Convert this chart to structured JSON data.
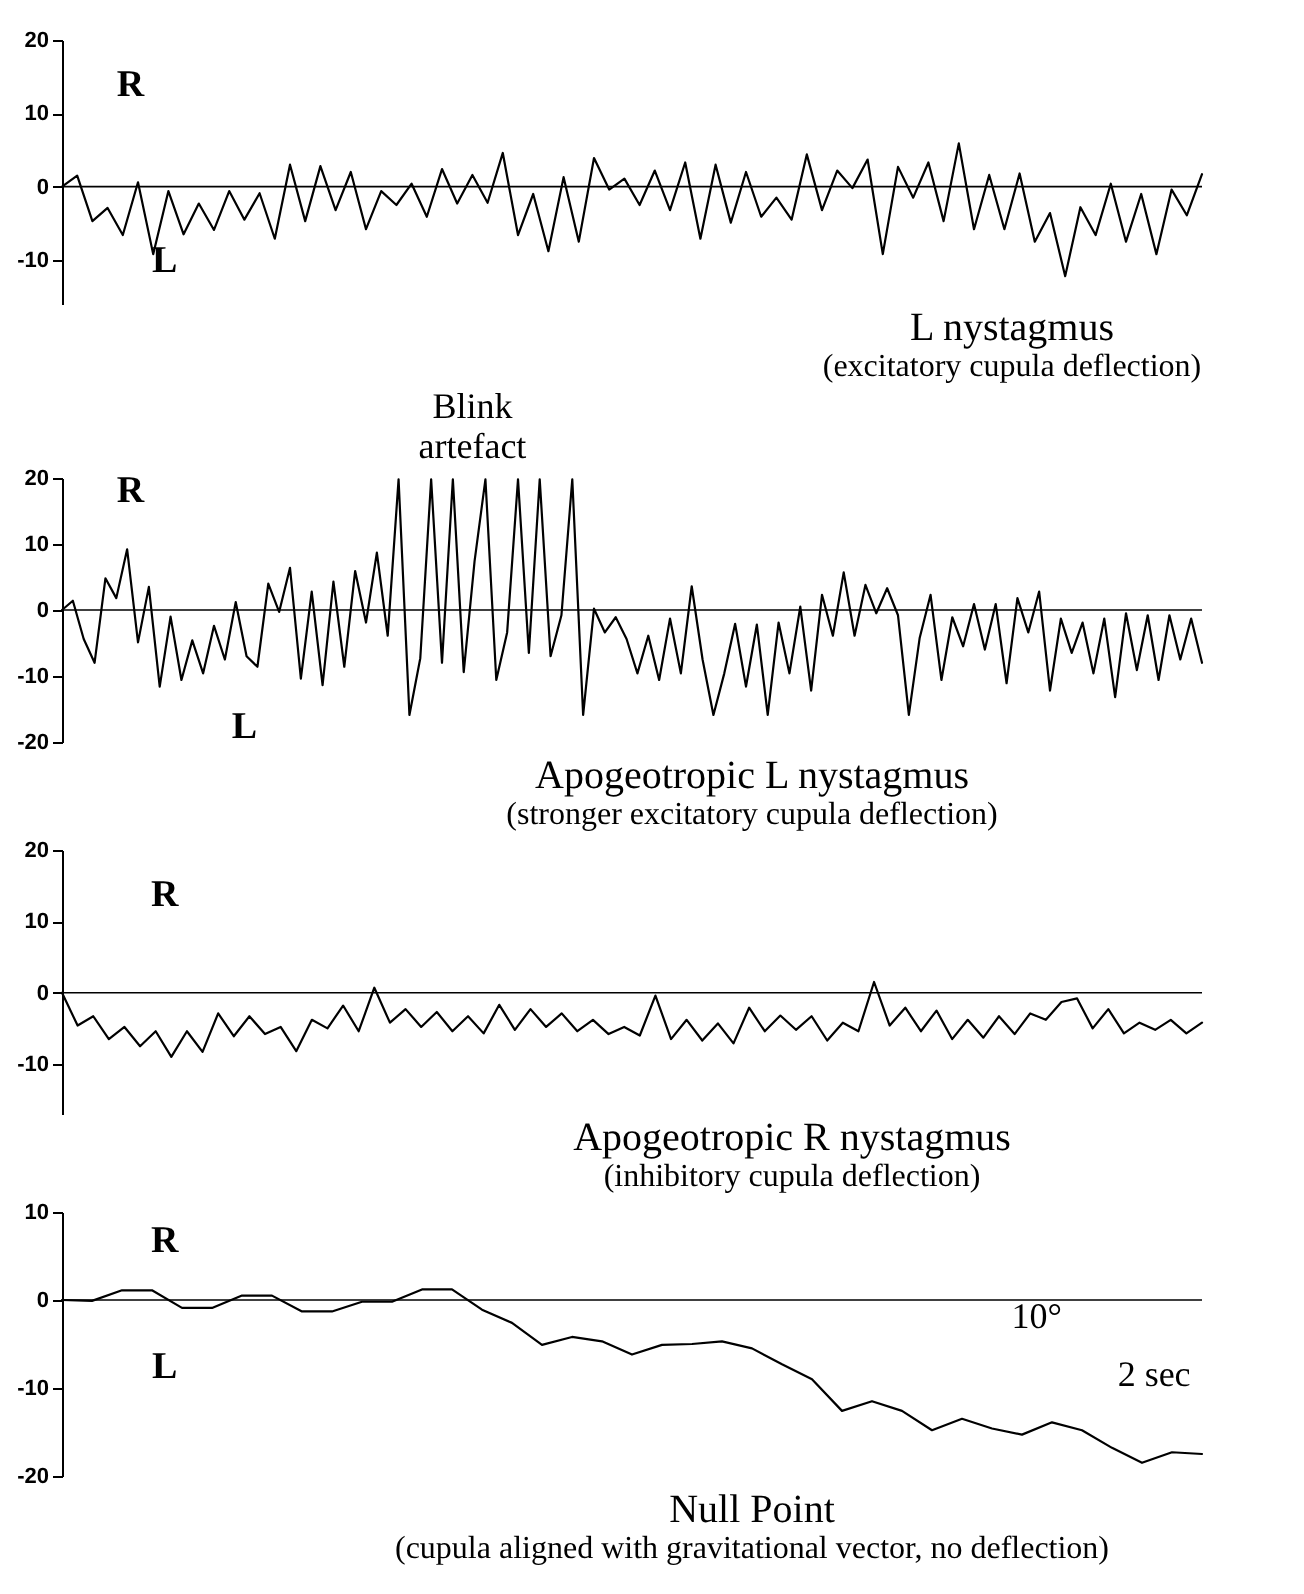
{
  "chart_data": [
    {
      "type": "line",
      "title": "L nystagmus",
      "subtitle": "(excitatory cupula deflection)",
      "color": "#000000",
      "marker": "none",
      "line_style": "solid",
      "grid": false,
      "tick_labels": "y",
      "categories": [
        null,
        null,
        null,
        null,
        null,
        null,
        null,
        null,
        null,
        null,
        null,
        null,
        null,
        null,
        null,
        null,
        null,
        null,
        null,
        null,
        null,
        null,
        null,
        null,
        null,
        null,
        null,
        null,
        null,
        null,
        null,
        null,
        null,
        null,
        null,
        null,
        null,
        null,
        null,
        null,
        null,
        null,
        null,
        null,
        null,
        null,
        null,
        null,
        null,
        null,
        null,
        null,
        null,
        null,
        null,
        null,
        null,
        null,
        null,
        null,
        null,
        null,
        null,
        null,
        null,
        null,
        null,
        null,
        null,
        null,
        null,
        null,
        null,
        null,
        null,
        null
      ],
      "values": [
        0,
        1.5,
        -4.7,
        -2.9,
        -6.6,
        0.6,
        -9.2,
        -0.6,
        -6.5,
        -2.3,
        -5.9,
        -0.6,
        -4.5,
        -0.9,
        -7.1,
        3.0,
        -4.7,
        2.8,
        -3.2,
        2.0,
        -5.8,
        -0.6,
        -2.5,
        0.4,
        -4.1,
        2.4,
        -2.3,
        1.6,
        -2.2,
        4.6,
        -6.6,
        -1.0,
        -8.8,
        1.3,
        -7.5,
        3.9,
        -0.4,
        1.1,
        -2.5,
        2.2,
        -3.2,
        3.3,
        -7.1,
        3.0,
        -4.9,
        2.0,
        -4.1,
        -1.5,
        -4.5,
        4.4,
        -3.2,
        2.2,
        -0.2,
        3.7,
        -9.2,
        2.7,
        -1.5,
        3.3,
        -4.7,
        5.9,
        -5.8,
        1.6,
        -5.8,
        1.8,
        -7.5,
        -3.6,
        -12.2,
        -2.8,
        -6.6,
        0.4,
        -7.5,
        -1.0,
        -9.2,
        -0.4,
        -3.9,
        1.7
      ],
      "ylim": [
        -16,
        20
      ],
      "yticks": [
        -10,
        0,
        10,
        20
      ],
      "ref_lines": [
        {
          "axis": "y",
          "value": 0,
          "color": "#000000"
        }
      ],
      "annotations": [
        "R",
        "L"
      ]
    },
    {
      "type": "line",
      "title": "Apogeotropic L nystagmus",
      "subtitle": "(stronger excitatory cupula deflection)",
      "color": "#000000",
      "marker": "none",
      "line_style": "solid",
      "grid": false,
      "tick_labels": "y",
      "categories": [
        null,
        null,
        null,
        null,
        null,
        null,
        null,
        null,
        null,
        null,
        null,
        null,
        null,
        null,
        null,
        null,
        null,
        null,
        null,
        null,
        null,
        null,
        null,
        null,
        null,
        null,
        null,
        null,
        null,
        null,
        null,
        null,
        null,
        null,
        null,
        null,
        null,
        null,
        null,
        null,
        null,
        null,
        null,
        null,
        null,
        null,
        null,
        null,
        null,
        null,
        null,
        null,
        null,
        null,
        null,
        null,
        null,
        null,
        null,
        null,
        null,
        null,
        null,
        null,
        null,
        null,
        null,
        null,
        null,
        null,
        null,
        null,
        null,
        null,
        null,
        null,
        null,
        null,
        null,
        null,
        null,
        null,
        null,
        null,
        null,
        null,
        null,
        null,
        null,
        null,
        null,
        null,
        null,
        null,
        null,
        null,
        null,
        null,
        null,
        null,
        null,
        null,
        null,
        null,
        null,
        null
      ],
      "values": [
        0,
        1.4,
        -4.4,
        -8.0,
        4.8,
        1.8,
        9.2,
        -4.9,
        3.5,
        -11.6,
        -1.0,
        -10.6,
        -4.6,
        -9.6,
        -2.4,
        -7.5,
        1.2,
        -7.0,
        -8.6,
        4.0,
        -0.3,
        6.4,
        -10.4,
        2.8,
        -11.4,
        4.3,
        -8.6,
        5.9,
        -1.9,
        8.7,
        -3.9,
        19.8,
        -15.9,
        -7.3,
        19.8,
        -8.0,
        19.8,
        -9.4,
        7.4,
        19.8,
        -10.6,
        -3.4,
        19.8,
        -6.5,
        19.8,
        -7.0,
        -0.8,
        19.8,
        -15.9,
        0.2,
        -3.4,
        -1.1,
        -4.4,
        -9.6,
        -3.9,
        -10.6,
        -1.3,
        -9.6,
        3.6,
        -7.5,
        -15.9,
        -9.6,
        -2.1,
        -11.6,
        -2.2,
        -15.9,
        -1.9,
        -9.6,
        0.5,
        -12.2,
        2.3,
        -3.9,
        5.7,
        -3.9,
        3.8,
        -0.5,
        3.3,
        -0.8,
        -15.9,
        -4.2,
        2.3,
        -10.6,
        -1.1,
        -5.5,
        0.9,
        -6.0,
        0.9,
        -11.1,
        1.8,
        -3.4,
        2.8,
        -12.2,
        -1.3,
        -6.5,
        -1.9,
        -9.6,
        -1.3,
        -13.2,
        -0.5,
        -9.1,
        -0.8,
        -10.6,
        -0.8,
        -7.5,
        -1.3,
        -8.0
      ],
      "ylim": [
        -20,
        20
      ],
      "yticks": [
        -20,
        -10,
        0,
        10,
        20
      ],
      "ref_lines": [
        {
          "axis": "y",
          "value": 0,
          "color": "#000000"
        }
      ],
      "annotations": [
        "R",
        "L",
        "Blink artefact"
      ]
    },
    {
      "type": "line",
      "title": "Apogeotropic R nystagmus",
      "subtitle": "(inhibitory cupula deflection)",
      "color": "#000000",
      "marker": "none",
      "line_style": "solid",
      "grid": false,
      "tick_labels": "y",
      "categories": [
        null,
        null,
        null,
        null,
        null,
        null,
        null,
        null,
        null,
        null,
        null,
        null,
        null,
        null,
        null,
        null,
        null,
        null,
        null,
        null,
        null,
        null,
        null,
        null,
        null,
        null,
        null,
        null,
        null,
        null,
        null,
        null,
        null,
        null,
        null,
        null,
        null,
        null,
        null,
        null,
        null,
        null,
        null,
        null,
        null,
        null,
        null,
        null,
        null,
        null,
        null,
        null,
        null,
        null,
        null,
        null,
        null,
        null,
        null,
        null,
        null,
        null,
        null,
        null,
        null,
        null,
        null,
        null,
        null,
        null,
        null,
        null,
        null,
        null
      ],
      "values": [
        0,
        -4.6,
        -3.3,
        -6.5,
        -4.8,
        -7.5,
        -5.4,
        -9.0,
        -5.4,
        -8.3,
        -2.9,
        -6.1,
        -3.3,
        -5.8,
        -4.8,
        -8.2,
        -3.8,
        -5.0,
        -1.8,
        -5.4,
        0.7,
        -4.2,
        -2.3,
        -4.8,
        -2.7,
        -5.4,
        -3.3,
        -5.7,
        -1.7,
        -5.2,
        -2.3,
        -4.8,
        -2.9,
        -5.4,
        -3.8,
        -5.8,
        -4.8,
        -6.0,
        -0.4,
        -6.5,
        -3.8,
        -6.7,
        -4.3,
        -7.1,
        -2.1,
        -5.4,
        -3.2,
        -5.2,
        -3.3,
        -6.7,
        -4.2,
        -5.4,
        1.5,
        -4.6,
        -2.1,
        -5.4,
        -2.5,
        -6.5,
        -3.8,
        -6.3,
        -3.3,
        -5.8,
        -2.9,
        -3.8,
        -1.3,
        -0.8,
        -5.0,
        -2.3,
        -5.7,
        -4.2,
        -5.2,
        -3.8,
        -5.7,
        -4.2
      ],
      "ylim": [
        -17,
        20
      ],
      "yticks": [
        -10,
        0,
        10,
        20
      ],
      "ref_lines": [
        {
          "axis": "y",
          "value": 0,
          "color": "#000000"
        }
      ],
      "annotations": [
        "R"
      ]
    },
    {
      "type": "line",
      "title": "Null Point",
      "subtitle": "(cupula aligned with gravitational vector, no deflection)",
      "color": "#000000",
      "marker": "none",
      "line_style": "solid",
      "grid": false,
      "tick_labels": "y",
      "categories": [
        null,
        null,
        null,
        null,
        null,
        null,
        null,
        null,
        null,
        null,
        null,
        null,
        null,
        null,
        null,
        null,
        null,
        null,
        null,
        null,
        null,
        null,
        null,
        null,
        null,
        null,
        null,
        null,
        null,
        null,
        null,
        null,
        null,
        null,
        null,
        null,
        null,
        null,
        null
      ],
      "values": [
        0,
        -0.1,
        1.1,
        1.1,
        -0.9,
        -0.9,
        0.5,
        0.5,
        -1.3,
        -1.3,
        -0.2,
        -0.2,
        1.2,
        1.2,
        -1.1,
        -2.6,
        -5.1,
        -4.2,
        -4.7,
        -6.2,
        -5.1,
        -5.0,
        -4.7,
        -5.5,
        -7.3,
        -9.0,
        -12.6,
        -11.5,
        -12.6,
        -14.8,
        -13.5,
        -14.6,
        -15.3,
        -13.9,
        -14.8,
        -16.8,
        -18.5,
        -17.3,
        -17.5
      ],
      "ylim": [
        -20,
        10
      ],
      "yticks": [
        -20,
        -10,
        0,
        10
      ],
      "ref_lines": [
        {
          "axis": "y",
          "value": 0,
          "color": "#000000"
        }
      ],
      "annotations": [
        "R",
        "L",
        "10°",
        "2 sec"
      ]
    }
  ]
}
